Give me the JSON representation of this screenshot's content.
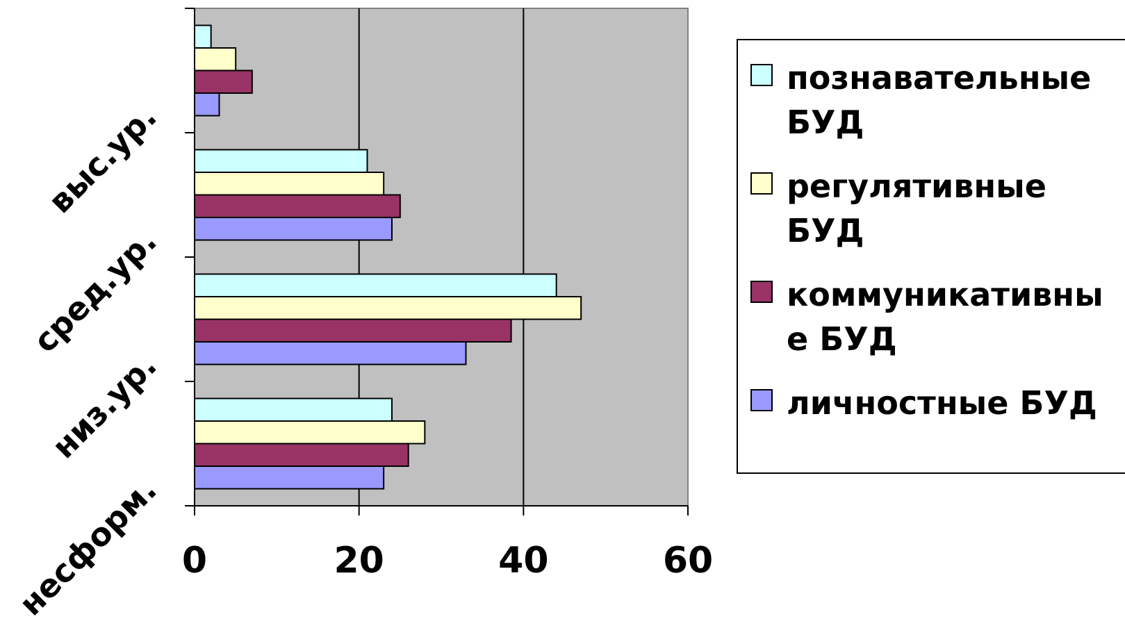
{
  "chart_data": {
    "type": "bar",
    "orientation": "horizontal",
    "categories": [
      "несформ.",
      "низ.ур.",
      "сред.ур.",
      "выс.ур."
    ],
    "series": [
      {
        "name": "познавательные БУД",
        "color": "#ccffff",
        "values": [
          24,
          44,
          21,
          2
        ]
      },
      {
        "name": "регулятивные БУД",
        "color": "#ffffcc",
        "values": [
          28,
          47,
          23,
          5
        ]
      },
      {
        "name": "коммуникативные БУД",
        "color": "#993366",
        "values": [
          26,
          38.5,
          25,
          7
        ]
      },
      {
        "name": "личностные БУД",
        "color": "#9999ff",
        "values": [
          23,
          33,
          24,
          3
        ]
      }
    ],
    "xlim": [
      0,
      60
    ],
    "xticks": [
      "0",
      "20",
      "40",
      "60"
    ],
    "plot_background": "#c0c0c0",
    "grid": true,
    "legend": "right"
  },
  "legend": {
    "items": [
      {
        "label": "познавательные БУД",
        "color": "#ccffff"
      },
      {
        "label": "регулятивные БУД",
        "color": "#ffffcc"
      },
      {
        "label": "коммуникативные БУД",
        "color": "#993366"
      },
      {
        "label": "личностные БУД",
        "color": "#9999ff"
      }
    ]
  }
}
